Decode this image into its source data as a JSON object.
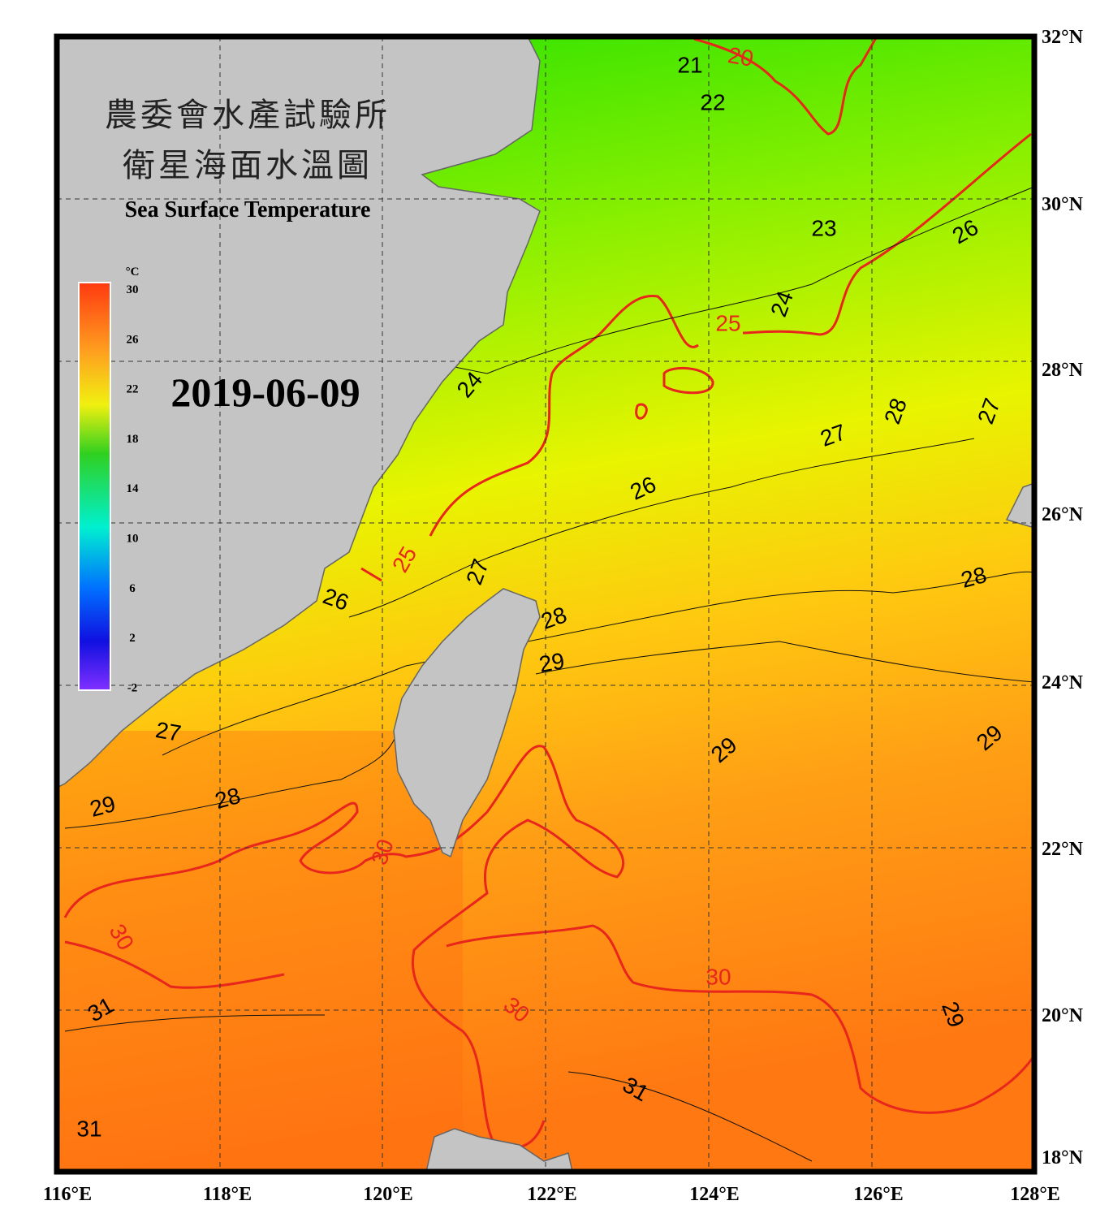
{
  "header": {
    "title_zh_1": "農委會水產試驗所",
    "title_zh_2": "衛星海面水溫圖",
    "title_en": "Sea Surface Temperature",
    "date": "2019-06-09"
  },
  "colorbar": {
    "unit": "°C",
    "ticks": [
      30,
      26,
      22,
      18,
      14,
      10,
      6,
      2,
      -2
    ]
  },
  "lon_labels": [
    "116°E",
    "118°E",
    "120°E",
    "122°E",
    "124°E",
    "126°E",
    "128°E"
  ],
  "lat_labels": [
    "32°N",
    "30°N",
    "28°N",
    "26°N",
    "24°N",
    "22°N",
    "20°N",
    "18°N"
  ],
  "contour_labels": {
    "black": [
      21,
      22,
      23,
      24,
      24,
      26,
      28,
      27,
      27,
      26,
      27,
      26,
      28,
      28,
      29,
      27,
      29,
      29,
      28,
      29,
      31,
      29,
      31,
      31
    ],
    "red": [
      20,
      25,
      25,
      30,
      30,
      30,
      30
    ]
  }
}
